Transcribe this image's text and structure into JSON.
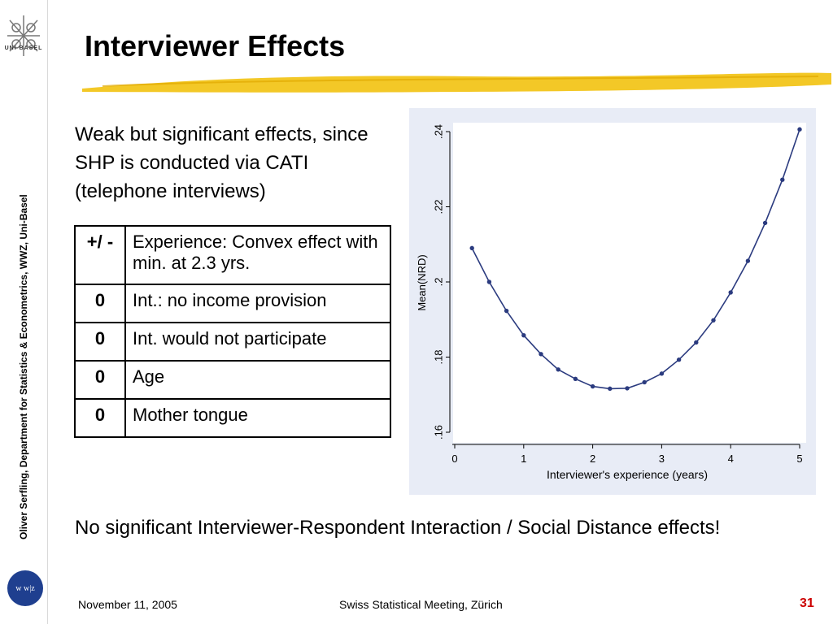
{
  "sidebar": {
    "logo_alt_text": "UNI BASEL",
    "vertical_text": "Oliver Serfling, Department for Statistics & Econometrics, WWZ,  Uni-Basel",
    "wwz_badge": "w w|z"
  },
  "slide": {
    "title": "Interviewer Effects",
    "intro": "Weak but significant effects, since SHP is conducted via CATI (telephone interviews)",
    "table": {
      "rows": [
        {
          "sign": "+/ -",
          "text": "Experience: Convex effect with min. at 2.3 yrs."
        },
        {
          "sign": "0",
          "text": "Int.: no income provision"
        },
        {
          "sign": "0",
          "text": "Int. would not participate"
        },
        {
          "sign": "0",
          "text": "Age"
        },
        {
          "sign": "0",
          "text": "Mother tongue"
        }
      ]
    },
    "conclusion": "No significant Interviewer-Respondent Interaction / Social Distance effects!"
  },
  "footer": {
    "date": "November 11, 2005",
    "event": "Swiss Statistical Meeting, Zürich",
    "page": "31"
  },
  "colors": {
    "accent_gold": "#f2c20f",
    "footer_page_red": "#cc0000",
    "plot_bg": "#e8ecf6",
    "series": "#2b3b7f"
  },
  "chart_data": {
    "type": "line",
    "title": "",
    "xlabel": "Interviewer's experience (years)",
    "ylabel": "Mean(NRD)",
    "xlim": [
      0,
      5
    ],
    "ylim": [
      0.16,
      0.24
    ],
    "x_ticks": [
      0,
      1,
      2,
      3,
      4,
      5
    ],
    "x_tick_labels": [
      "0",
      "1",
      "2",
      "3",
      "4",
      "5"
    ],
    "y_ticks": [
      0.16,
      0.18,
      0.2,
      0.22,
      0.24
    ],
    "y_tick_labels": [
      ".16",
      ".18",
      ".2",
      ".22",
      ".24"
    ],
    "grid": false,
    "legend": null,
    "series": [
      {
        "x": [
          0.25,
          0.5,
          0.75,
          1.0,
          1.25,
          1.5,
          1.75,
          2.0,
          2.25,
          2.5,
          2.75,
          3.0,
          3.25,
          3.5,
          3.75,
          4.0,
          4.25,
          4.5,
          4.75,
          5.0
        ],
        "y": [
          0.209,
          0.2,
          0.1923,
          0.1858,
          0.1808,
          0.1767,
          0.1742,
          0.1722,
          0.1716,
          0.1717,
          0.1733,
          0.1756,
          0.1793,
          0.1839,
          0.1898,
          0.1972,
          0.2056,
          0.2157,
          0.2272,
          0.2406
        ]
      }
    ]
  }
}
